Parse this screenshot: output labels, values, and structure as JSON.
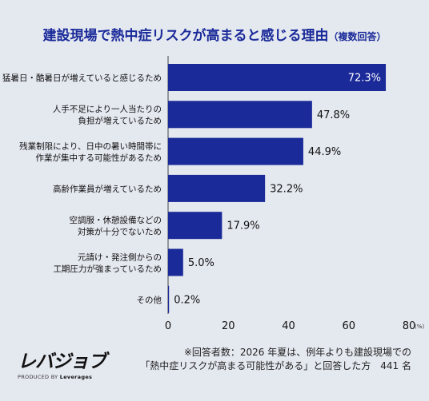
{
  "title": "建設現場で熱中症リスクが高まると感じる理由",
  "subtitle": "（複数回答）",
  "chart_data": {
    "type": "bar",
    "orientation": "horizontal",
    "categories": [
      [
        "猛暑日・酷暑日が増えていると感じるため"
      ],
      [
        "人手不足により一人当たりの",
        "負担が増えているため"
      ],
      [
        "残業制限により、日中の暑い時間帯に",
        "作業が集中する可能性があるため"
      ],
      [
        "高齢作業員が増えているため"
      ],
      [
        "空調服・休憩設備などの",
        "対策が十分でないため"
      ],
      [
        "元請け・発注側からの",
        "工期圧力が強まっているため"
      ],
      [
        "その他"
      ]
    ],
    "values": [
      72.3,
      47.8,
      44.9,
      32.2,
      17.9,
      5.0,
      0.2
    ],
    "value_labels": [
      "72.3%",
      "47.8%",
      "44.9%",
      "32.2%",
      "17.9%",
      "5.0%",
      "0.2%"
    ],
    "xlim": [
      0,
      80
    ],
    "xticks": [
      "0",
      "20",
      "40",
      "60",
      "80"
    ],
    "x_unit": "(%)",
    "bar_color": "#1a2a99",
    "grid": false
  },
  "logo": {
    "brand": "レバジョブ",
    "by_prefix": "PRODUCED BY",
    "by_name": "Leverages"
  },
  "note": {
    "line1": "※回答者数：2026 年夏は、例年よりも建設現場での",
    "line2": "「熱中症リスクが高まる可能性がある」と回答した方　441 名"
  }
}
